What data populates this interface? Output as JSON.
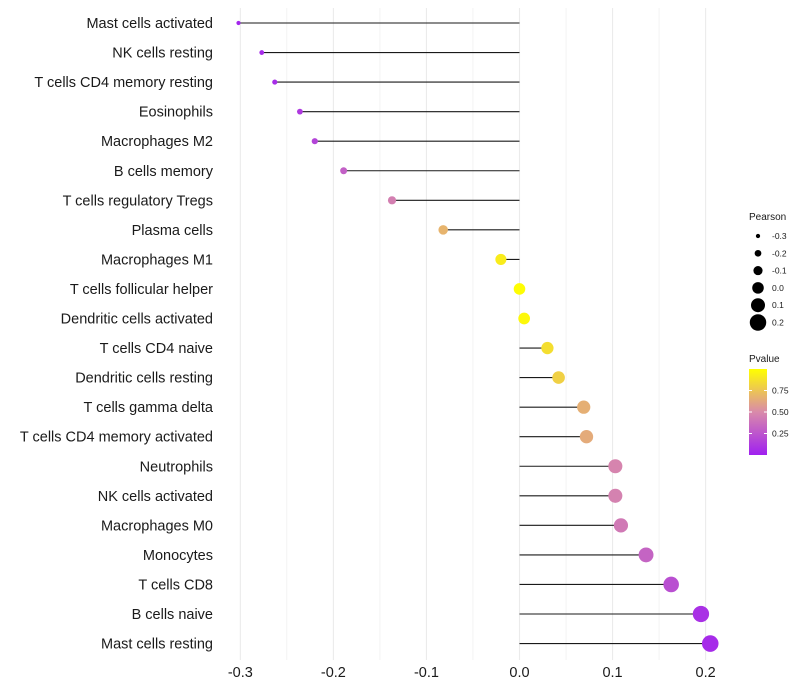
{
  "chart_data": {
    "type": "lollipop",
    "title": "",
    "xlabel": "",
    "ylabel": "",
    "xlim": [
      -0.33,
      0.225
    ],
    "xticks": [
      -0.3,
      -0.2,
      -0.1,
      0.0,
      0.1,
      0.2
    ],
    "xtick_labels": [
      "-0.3",
      "-0.2",
      "-0.1",
      "0.0",
      "0.1",
      "0.2"
    ],
    "grid": true,
    "categories": [
      "Mast cells activated",
      "NK cells resting",
      "T cells CD4 memory resting",
      "Eosinophils",
      "Macrophages M2",
      "B cells memory",
      "T cells regulatory  Tregs",
      "Plasma cells",
      "Macrophages M1",
      "T cells follicular helper",
      "Dendritic cells activated",
      "T cells CD4 naive",
      "Dendritic cells resting",
      "T cells gamma delta",
      "T cells CD4 memory activated",
      "Neutrophils",
      "NK cells activated",
      "Macrophages M0",
      "Monocytes",
      "T cells CD8",
      "B cells naive",
      "Mast cells resting"
    ],
    "pearson": [
      -0.302,
      -0.277,
      -0.263,
      -0.236,
      -0.22,
      -0.189,
      -0.137,
      -0.082,
      -0.02,
      0.0,
      0.005,
      0.03,
      0.042,
      0.069,
      0.072,
      0.103,
      0.103,
      0.109,
      0.136,
      0.163,
      0.195,
      0.205
    ],
    "pvalue": [
      0.03,
      0.05,
      0.06,
      0.12,
      0.17,
      0.3,
      0.45,
      0.68,
      0.92,
      0.99,
      0.97,
      0.86,
      0.8,
      0.66,
      0.64,
      0.47,
      0.46,
      0.42,
      0.32,
      0.22,
      0.08,
      0.05
    ],
    "size_legend": {
      "title": "Pearson",
      "labels": [
        "-0.3",
        "-0.2",
        "-0.1",
        "0.0",
        "0.1",
        "0.2"
      ],
      "values": [
        -0.3,
        -0.2,
        -0.1,
        0.0,
        0.1,
        0.2
      ]
    },
    "color_legend": {
      "title": "Pvalue",
      "labels": [
        "0.75",
        "0.50",
        "0.25"
      ],
      "values": [
        0.75,
        0.5,
        0.25
      ],
      "range": [
        0.0,
        1.0
      ],
      "colors": {
        "low": "#a020f0",
        "mid": "#d98aaa",
        "high": "#ffff00"
      }
    }
  },
  "colors": {
    "segment": "#1a1a1a",
    "grid": "#ebebeb"
  }
}
